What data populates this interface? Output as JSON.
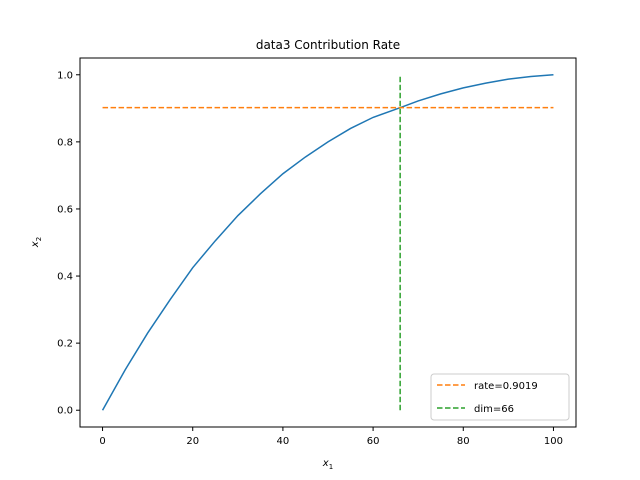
{
  "chart_data": {
    "type": "line",
    "title": "data3 Contribution Rate",
    "xlabel": "x",
    "xlabel_sub": "1",
    "ylabel": "x",
    "ylabel_sub": "2",
    "xlim": [
      -5,
      105
    ],
    "ylim": [
      -0.05,
      1.05
    ],
    "xticks": [
      0,
      20,
      40,
      60,
      80,
      100
    ],
    "yticks": [
      0.0,
      0.2,
      0.4,
      0.6,
      0.8,
      1.0
    ],
    "xtick_labels": [
      "0",
      "20",
      "40",
      "60",
      "80",
      "100"
    ],
    "ytick_labels": [
      "0.0",
      "0.2",
      "0.4",
      "0.6",
      "0.8",
      "1.0"
    ],
    "grid": false,
    "legend_position": "bottom-right",
    "series": [
      {
        "color": "#1f77b4",
        "style": "solid",
        "x": [
          0,
          5,
          10,
          15,
          20,
          25,
          30,
          35,
          40,
          45,
          50,
          55,
          60,
          65,
          66,
          70,
          75,
          80,
          85,
          90,
          95,
          100
        ],
        "y": [
          0.0,
          0.12,
          0.23,
          0.33,
          0.425,
          0.505,
          0.58,
          0.645,
          0.705,
          0.755,
          0.8,
          0.84,
          0.873,
          0.897,
          0.9019,
          0.922,
          0.943,
          0.961,
          0.975,
          0.987,
          0.995,
          1.0
        ]
      },
      {
        "name": "rate=0.9019",
        "color": "#ff7f0e",
        "style": "dashed",
        "x": [
          0,
          100
        ],
        "y": [
          0.9019,
          0.9019
        ]
      },
      {
        "name": "dim=66",
        "color": "#2ca02c",
        "style": "dashed",
        "x": [
          66,
          66
        ],
        "y": [
          0.0,
          1.0
        ]
      }
    ]
  }
}
